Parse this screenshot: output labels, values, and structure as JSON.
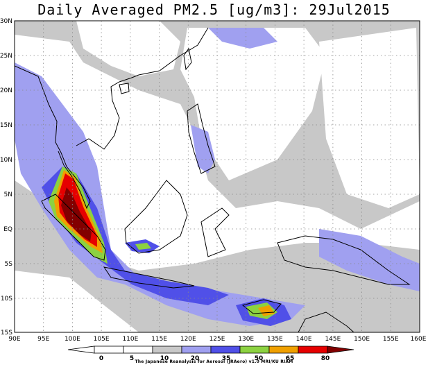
{
  "title": "Daily Averaged PM2.5 [ug/m3]: 29Jul2015",
  "lat_labels": [
    "30N",
    "25N",
    "20N",
    "15N",
    "10N",
    "5N",
    "EQ",
    "5S",
    "10S",
    "15S"
  ],
  "lon_labels": [
    "90E",
    "95E",
    "100E",
    "105E",
    "110E",
    "115E",
    "120E",
    "125E",
    "130E",
    "135E",
    "140E",
    "145E",
    "150E",
    "155E",
    "160E"
  ],
  "colorbar": {
    "ticks": [
      "0",
      "5",
      "10",
      "20",
      "35",
      "50",
      "65",
      "80"
    ],
    "colors": [
      "#ffffff",
      "#ffffff",
      "#c8c8c8",
      "#a0a0f0",
      "#5050e8",
      "#8cd241",
      "#f0a000",
      "#e60000",
      "#820000"
    ]
  },
  "palette": {
    "light_gray": "#c8c8c8",
    "light_blue": "#a0a0f0",
    "blue": "#5050e8",
    "green": "#8cd241",
    "orange": "#f0a000",
    "red": "#e60000",
    "dark_red": "#820000"
  },
  "credit": "The Japanese Reanalysis for Aerosol (JRAero) v1.0 MRI/KU RIAM"
}
